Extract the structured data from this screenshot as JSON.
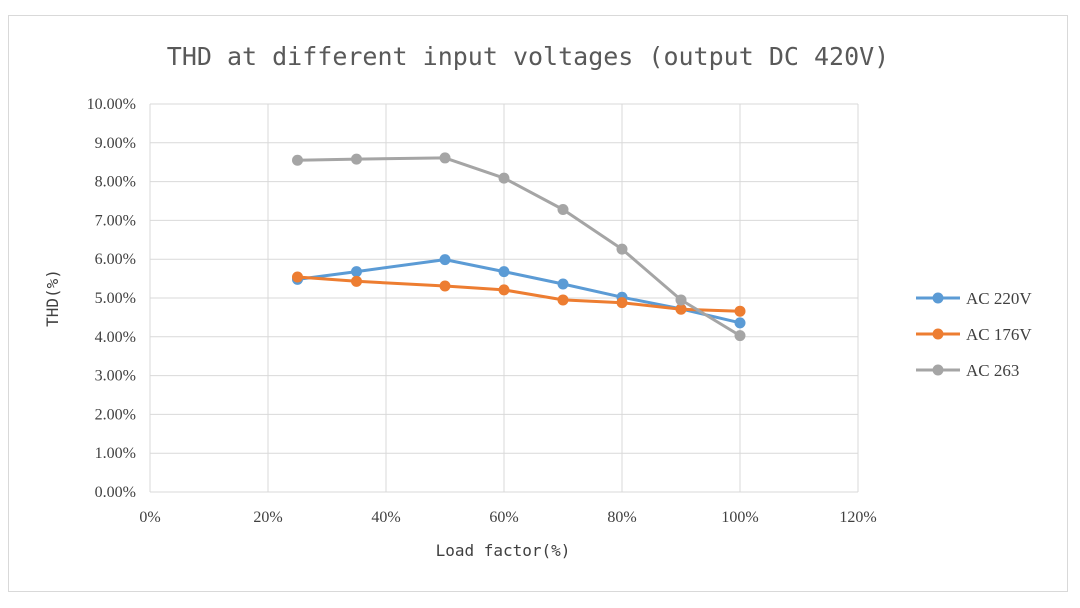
{
  "chart_data": {
    "type": "line",
    "title": "THD at different input voltages (output DC 420V)",
    "xlabel": "Load factor(%)",
    "ylabel": "THD(%)",
    "xlim": [
      0,
      120
    ],
    "ylim": [
      0,
      10
    ],
    "x_ticks": [
      0,
      20,
      40,
      60,
      80,
      100,
      120
    ],
    "x_tick_labels": [
      "0%",
      "20%",
      "40%",
      "60%",
      "80%",
      "100%",
      "120%"
    ],
    "y_ticks": [
      0,
      1,
      2,
      3,
      4,
      5,
      6,
      7,
      8,
      9,
      10
    ],
    "y_tick_labels": [
      "0.00%",
      "1.00%",
      "2.00%",
      "3.00%",
      "4.00%",
      "5.00%",
      "6.00%",
      "7.00%",
      "8.00%",
      "9.00%",
      "10.00%"
    ],
    "grid": true,
    "legend_position": "right",
    "series": [
      {
        "name": "AC 220V",
        "color": "#5b9bd5",
        "x": [
          25,
          35,
          50,
          60,
          70,
          80,
          90,
          100
        ],
        "y": [
          5.48,
          5.68,
          5.99,
          5.68,
          5.36,
          5.02,
          4.72,
          4.36
        ]
      },
      {
        "name": "AC 176V",
        "color": "#ed7d31",
        "x": [
          25,
          35,
          50,
          60,
          70,
          80,
          90,
          100
        ],
        "y": [
          5.54,
          5.43,
          5.31,
          5.21,
          4.95,
          4.88,
          4.71,
          4.66
        ]
      },
      {
        "name": "AC 263",
        "color": "#a5a5a5",
        "x": [
          25,
          35,
          50,
          60,
          70,
          80,
          90,
          100
        ],
        "y": [
          8.55,
          8.58,
          8.61,
          8.09,
          7.28,
          6.26,
          4.95,
          4.03
        ]
      }
    ]
  }
}
